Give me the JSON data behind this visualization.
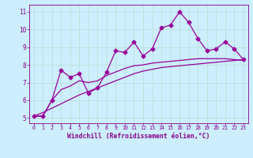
{
  "x": [
    0,
    1,
    2,
    3,
    4,
    5,
    6,
    7,
    8,
    9,
    10,
    11,
    12,
    13,
    14,
    15,
    16,
    17,
    18,
    19,
    20,
    21,
    22,
    23
  ],
  "y_data": [
    5.1,
    5.1,
    6.0,
    7.7,
    7.3,
    7.5,
    6.4,
    6.7,
    7.6,
    8.8,
    8.7,
    9.3,
    8.5,
    8.9,
    10.1,
    10.25,
    11.0,
    10.4,
    9.5,
    8.8,
    8.9,
    9.3,
    8.9,
    8.3
  ],
  "y_smooth": [
    5.1,
    5.1,
    6.0,
    6.6,
    6.8,
    7.1,
    7.0,
    7.1,
    7.4,
    7.6,
    7.8,
    7.95,
    8.0,
    8.1,
    8.15,
    8.2,
    8.25,
    8.3,
    8.35,
    8.35,
    8.35,
    8.35,
    8.3,
    8.25
  ],
  "y_trend": [
    5.1,
    5.3,
    5.55,
    5.8,
    6.05,
    6.3,
    6.5,
    6.7,
    6.9,
    7.1,
    7.3,
    7.5,
    7.65,
    7.75,
    7.85,
    7.9,
    7.95,
    8.0,
    8.05,
    8.1,
    8.15,
    8.2,
    8.25,
    8.3
  ],
  "line_color": "#990099",
  "bg_color": "#cceeff",
  "grid_color": "#b8ddd0",
  "axis_color": "#880088",
  "xlabel": "Windchill (Refroidissement éolien,°C)",
  "xlim": [
    -0.5,
    23.5
  ],
  "ylim": [
    4.7,
    11.4
  ],
  "yticks": [
    5,
    6,
    7,
    8,
    9,
    10,
    11
  ],
  "xticks": [
    0,
    1,
    2,
    3,
    4,
    5,
    6,
    7,
    8,
    9,
    10,
    11,
    12,
    13,
    14,
    15,
    16,
    17,
    18,
    19,
    20,
    21,
    22,
    23
  ],
  "marker": "D",
  "markersize": 2.5,
  "linewidth": 0.9
}
